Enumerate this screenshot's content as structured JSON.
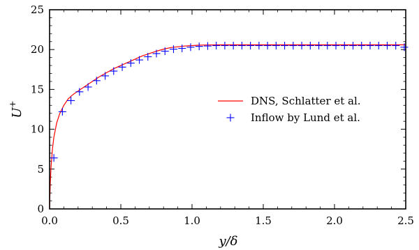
{
  "chart_data": {
    "type": "line",
    "xlabel": "y/δ",
    "ylabel": "U+",
    "xlim": [
      0,
      2.5
    ],
    "ylim": [
      0,
      25
    ],
    "x_ticks": [
      "0.0",
      "0.5",
      "1.0",
      "1.5",
      "2.0",
      "2.5"
    ],
    "y_ticks": [
      "0",
      "5",
      "10",
      "15",
      "20",
      "25"
    ],
    "grid": false,
    "legend_position": "center-right",
    "series": [
      {
        "name": "DNS, Schlatter et al.",
        "style": "line",
        "color": "#ff0000",
        "x": [
          0,
          0.002,
          0.005,
          0.01,
          0.02,
          0.03,
          0.05,
          0.07,
          0.1,
          0.13,
          0.16,
          0.2,
          0.25,
          0.3,
          0.35,
          0.4,
          0.45,
          0.5,
          0.55,
          0.6,
          0.65,
          0.7,
          0.75,
          0.8,
          0.85,
          0.9,
          0.95,
          1.0,
          1.05,
          1.1,
          1.2,
          1.3,
          1.5,
          2.0,
          2.5
        ],
        "y": [
          0,
          1.5,
          3.2,
          5.2,
          7.5,
          9.0,
          10.8,
          11.9,
          13.0,
          13.8,
          14.3,
          14.8,
          15.4,
          16.0,
          16.6,
          17.1,
          17.6,
          18.0,
          18.4,
          18.8,
          19.2,
          19.5,
          19.8,
          20.05,
          20.25,
          20.35,
          20.45,
          20.5,
          20.55,
          20.58,
          20.6,
          20.6,
          20.6,
          20.6,
          20.6
        ]
      },
      {
        "name": "Inflow by Lund et al.",
        "style": "marker-plus",
        "color": "#0000ff",
        "x": [
          0.03,
          0.09,
          0.15,
          0.21,
          0.27,
          0.33,
          0.39,
          0.45,
          0.51,
          0.57,
          0.63,
          0.69,
          0.75,
          0.81,
          0.87,
          0.93,
          0.99,
          1.05,
          1.11,
          1.17,
          1.23,
          1.29,
          1.35,
          1.41,
          1.47,
          1.53,
          1.59,
          1.65,
          1.71,
          1.77,
          1.83,
          1.89,
          1.95,
          2.01,
          2.07,
          2.13,
          2.19,
          2.25,
          2.31,
          2.37,
          2.43,
          2.49
        ],
        "y": [
          6.4,
          12.2,
          13.6,
          14.7,
          15.3,
          16.1,
          16.7,
          17.3,
          17.8,
          18.3,
          18.7,
          19.1,
          19.5,
          19.8,
          20.05,
          20.15,
          20.3,
          20.4,
          20.45,
          20.5,
          20.5,
          20.5,
          20.5,
          20.5,
          20.5,
          20.5,
          20.5,
          20.5,
          20.5,
          20.5,
          20.5,
          20.5,
          20.5,
          20.5,
          20.5,
          20.5,
          20.5,
          20.5,
          20.5,
          20.5,
          20.5,
          20.3
        ]
      }
    ]
  }
}
